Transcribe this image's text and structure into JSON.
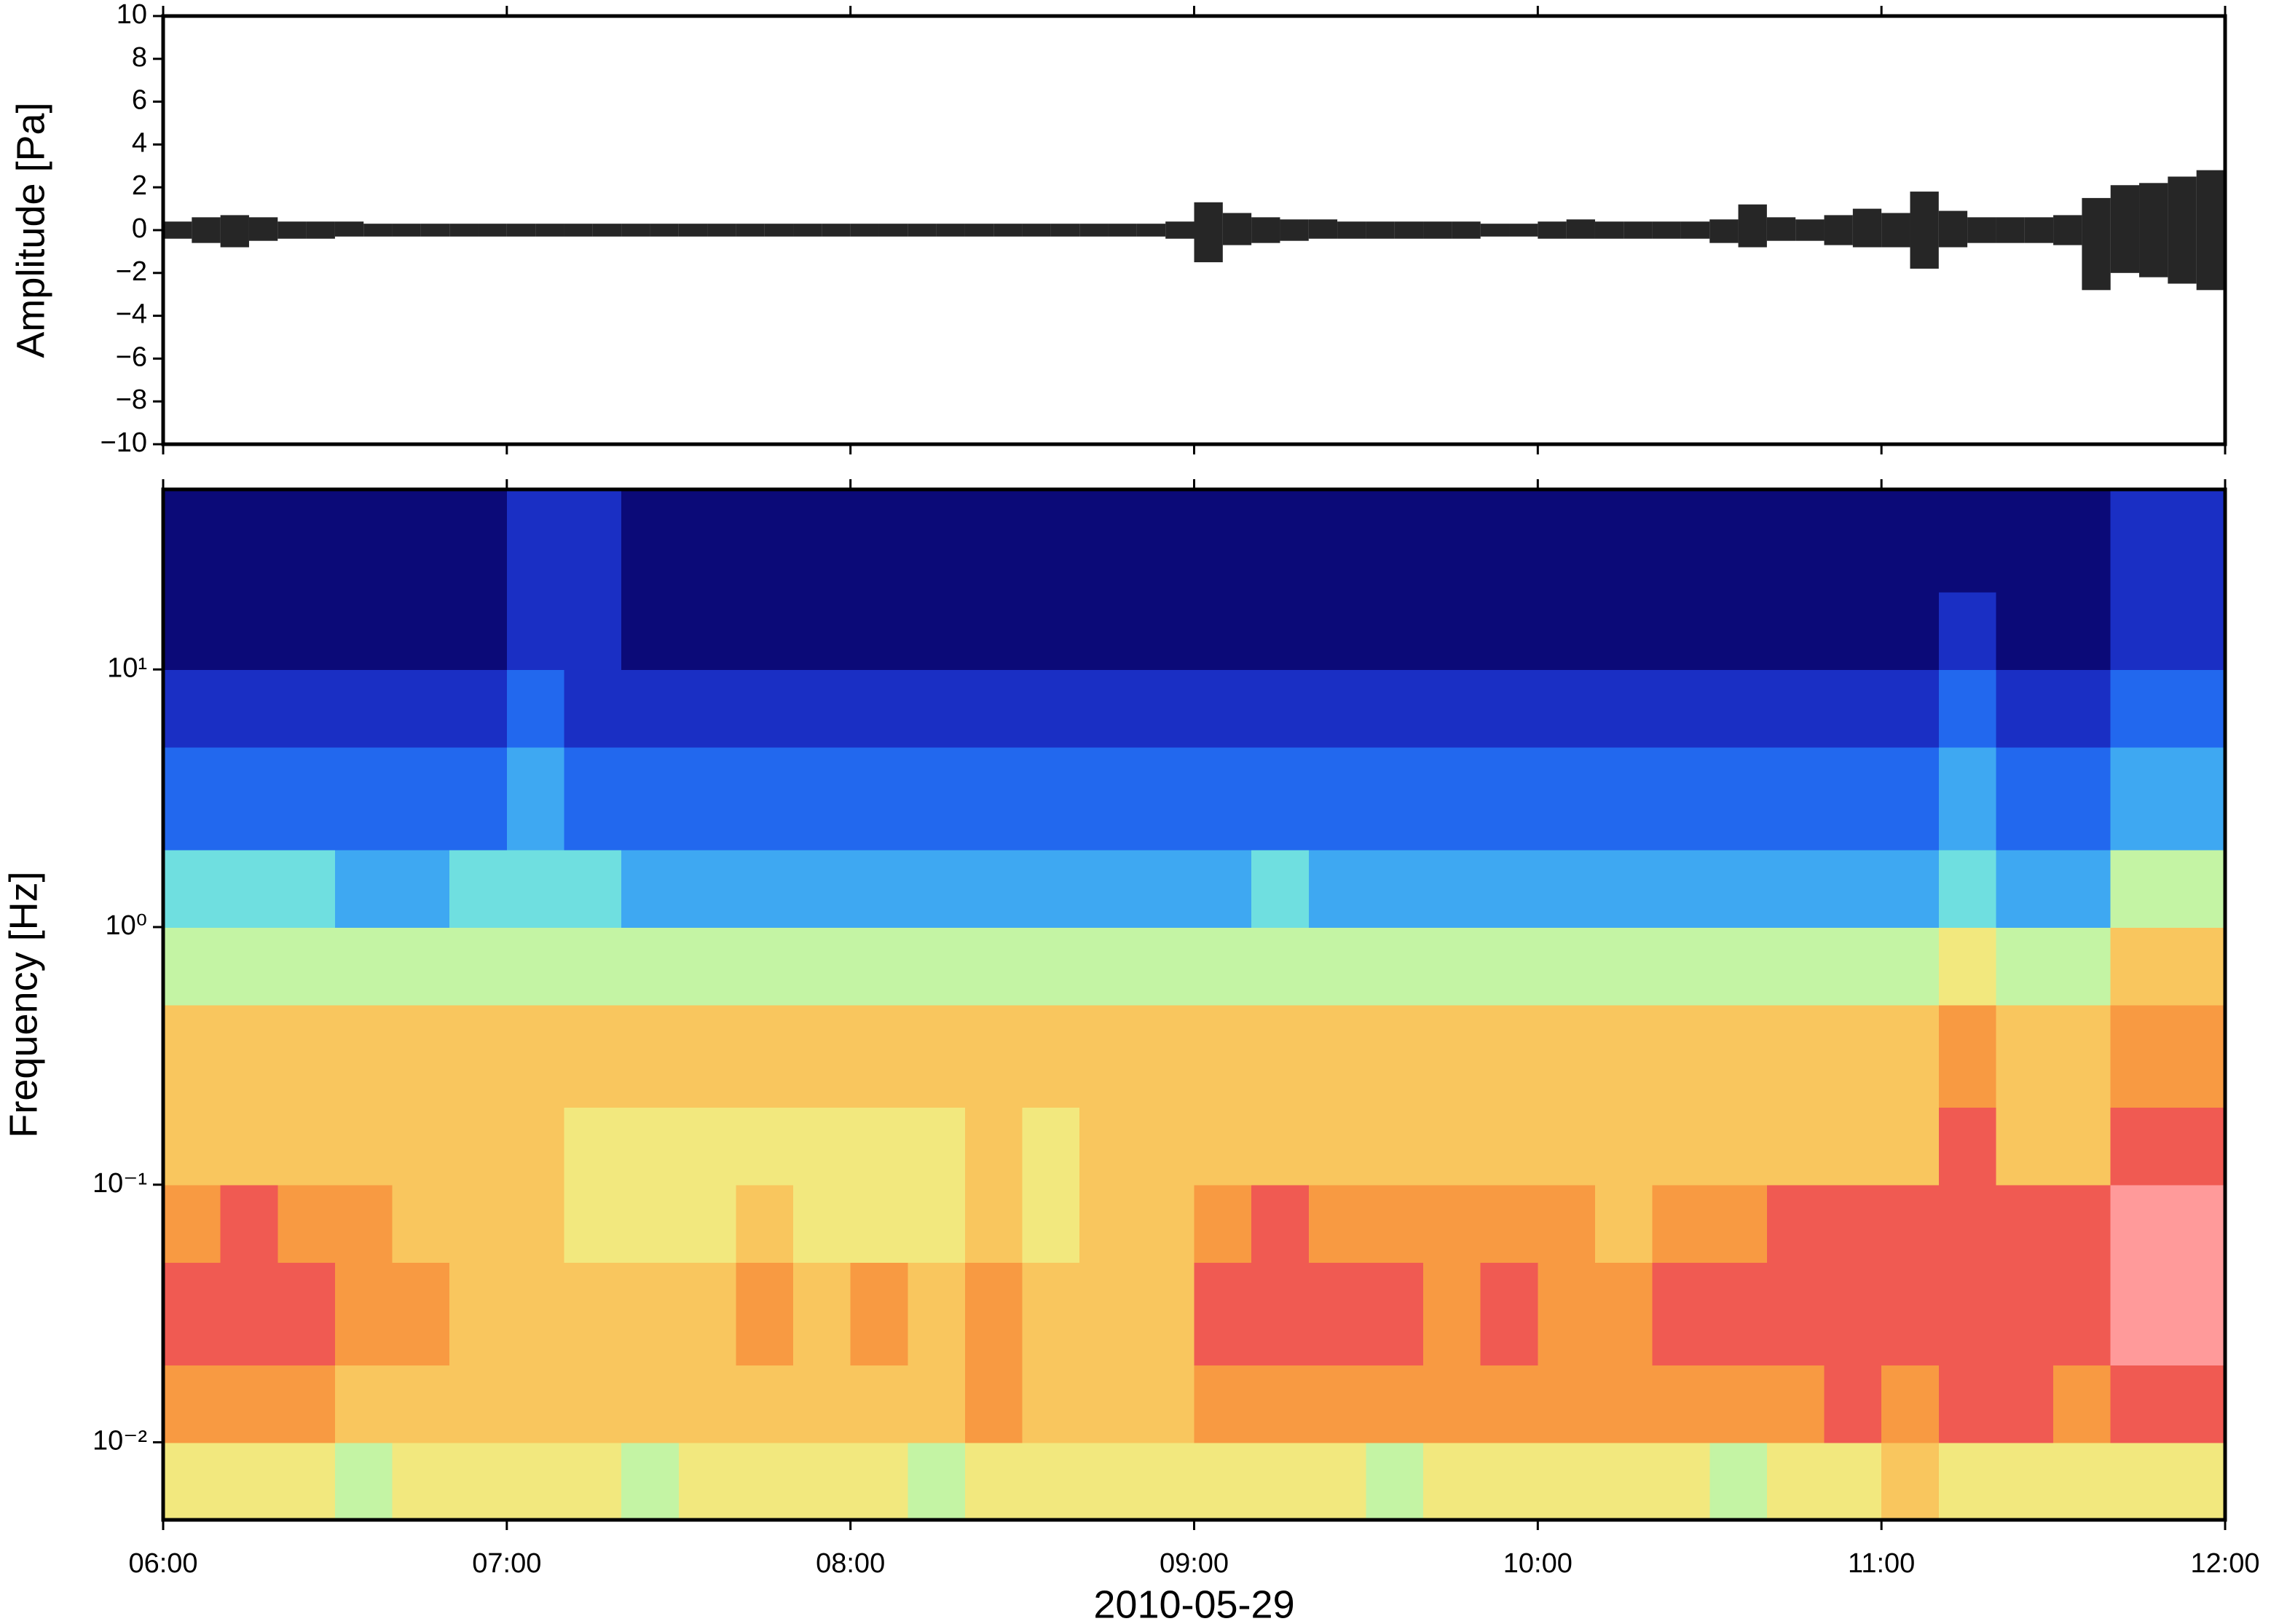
{
  "chart_data": [
    {
      "type": "waveform",
      "ylabel": "Amplitude [Pa]",
      "xlim": [
        "06:00",
        "12:00"
      ],
      "ylim": [
        -10,
        10
      ],
      "yticks": [
        {
          "value": -10,
          "label": "−10"
        },
        {
          "value": -8,
          "label": "−8"
        },
        {
          "value": -6,
          "label": "−6"
        },
        {
          "value": -4,
          "label": "−4"
        },
        {
          "value": -2,
          "label": "−2"
        },
        0,
        2,
        4,
        6,
        8,
        10
      ],
      "color": "#000000",
      "x": [
        "06:00",
        "06:05",
        "06:10",
        "06:15",
        "06:20",
        "06:25",
        "06:30",
        "06:35",
        "06:40",
        "06:45",
        "06:50",
        "06:55",
        "07:00",
        "07:05",
        "07:10",
        "07:15",
        "07:20",
        "07:25",
        "07:30",
        "07:35",
        "07:40",
        "07:45",
        "07:50",
        "07:55",
        "08:00",
        "08:05",
        "08:10",
        "08:15",
        "08:20",
        "08:25",
        "08:30",
        "08:35",
        "08:40",
        "08:45",
        "08:50",
        "08:55",
        "09:00",
        "09:05",
        "09:10",
        "09:15",
        "09:20",
        "09:25",
        "09:30",
        "09:35",
        "09:40",
        "09:45",
        "09:50",
        "09:55",
        "10:00",
        "10:05",
        "10:10",
        "10:15",
        "10:20",
        "10:25",
        "10:30",
        "10:35",
        "10:40",
        "10:45",
        "10:50",
        "10:55",
        "11:00",
        "11:05",
        "11:10",
        "11:15",
        "11:20",
        "11:25",
        "11:30",
        "11:35",
        "11:40",
        "11:45",
        "11:50",
        "11:55"
      ],
      "upper": [
        0.4,
        0.6,
        0.7,
        0.6,
        0.4,
        0.4,
        0.4,
        0.3,
        0.3,
        0.3,
        0.3,
        0.3,
        0.3,
        0.3,
        0.3,
        0.3,
        0.3,
        0.3,
        0.3,
        0.3,
        0.3,
        0.3,
        0.3,
        0.3,
        0.3,
        0.3,
        0.3,
        0.3,
        0.3,
        0.3,
        0.3,
        0.3,
        0.3,
        0.3,
        0.3,
        0.4,
        1.3,
        0.8,
        0.6,
        0.5,
        0.5,
        0.4,
        0.4,
        0.4,
        0.4,
        0.4,
        0.3,
        0.3,
        0.4,
        0.5,
        0.4,
        0.4,
        0.4,
        0.4,
        0.5,
        1.2,
        0.6,
        0.5,
        0.7,
        1.0,
        0.8,
        1.8,
        0.9,
        0.6,
        0.6,
        0.6,
        0.7,
        1.5,
        2.1,
        2.2,
        2.5,
        2.8
      ],
      "lower": [
        -0.4,
        -0.6,
        -0.8,
        -0.5,
        -0.4,
        -0.4,
        -0.3,
        -0.3,
        -0.3,
        -0.3,
        -0.3,
        -0.3,
        -0.3,
        -0.3,
        -0.3,
        -0.3,
        -0.3,
        -0.3,
        -0.3,
        -0.3,
        -0.3,
        -0.3,
        -0.3,
        -0.3,
        -0.3,
        -0.3,
        -0.3,
        -0.3,
        -0.3,
        -0.3,
        -0.3,
        -0.3,
        -0.3,
        -0.3,
        -0.3,
        -0.4,
        -1.5,
        -0.7,
        -0.6,
        -0.5,
        -0.4,
        -0.4,
        -0.4,
        -0.4,
        -0.4,
        -0.4,
        -0.3,
        -0.3,
        -0.4,
        -0.4,
        -0.4,
        -0.4,
        -0.4,
        -0.4,
        -0.6,
        -0.8,
        -0.5,
        -0.5,
        -0.7,
        -0.8,
        -0.8,
        -1.8,
        -0.8,
        -0.6,
        -0.6,
        -0.6,
        -0.7,
        -2.8,
        -2.0,
        -2.2,
        -2.5,
        -2.8
      ]
    },
    {
      "type": "heatmap",
      "ylabel": "Frequency [Hz]",
      "xlabel": "2010-05-29",
      "xlim": [
        "06:00",
        "12:00"
      ],
      "xticks": [
        "06:00",
        "07:00",
        "08:00",
        "09:00",
        "10:00",
        "11:00",
        "12:00"
      ],
      "ylim": [
        0.005,
        50
      ],
      "logy": true,
      "yticks": [
        {
          "value": 0.01,
          "label": "10⁻²"
        },
        {
          "value": 0.1,
          "label": "10⁻¹"
        },
        {
          "value": 1,
          "label": "10⁰"
        },
        {
          "value": 10,
          "label": "10¹"
        }
      ],
      "colormap": [
        "#0b0a78",
        "#1a2fc4",
        "#2268ee",
        "#3ea8f2",
        "#6fdfe0",
        "#c4f4a4",
        "#f2e87e",
        "#f9c65e",
        "#f89a42",
        "#f05a52",
        "#ff9a9a"
      ],
      "x": [
        "06:00",
        "06:10",
        "06:20",
        "06:30",
        "06:40",
        "06:50",
        "07:00",
        "07:10",
        "07:20",
        "07:30",
        "07:40",
        "07:50",
        "08:00",
        "08:10",
        "08:20",
        "08:30",
        "08:40",
        "08:50",
        "09:00",
        "09:10",
        "09:20",
        "09:30",
        "09:40",
        "09:50",
        "10:00",
        "10:10",
        "10:20",
        "10:30",
        "10:40",
        "10:50",
        "11:00",
        "11:10",
        "11:20",
        "11:30",
        "11:40",
        "11:50"
      ],
      "y": [
        0.005,
        0.01,
        0.02,
        0.05,
        0.1,
        0.2,
        0.5,
        1,
        2,
        5,
        10,
        20,
        50
      ],
      "z": [
        [
          6,
          6,
          6,
          5,
          6,
          6,
          6,
          6,
          5,
          6,
          6,
          6,
          6,
          5,
          6,
          6,
          6,
          6,
          6,
          6,
          6,
          5,
          6,
          6,
          6,
          6,
          6,
          5,
          6,
          6,
          7,
          6,
          6,
          6,
          6,
          6
        ],
        [
          8,
          8,
          8,
          7,
          7,
          7,
          7,
          7,
          7,
          7,
          7,
          7,
          7,
          7,
          8,
          7,
          7,
          7,
          8,
          8,
          8,
          8,
          8,
          8,
          8,
          8,
          8,
          8,
          8,
          9,
          8,
          9,
          9,
          8,
          9,
          9
        ],
        [
          9,
          9,
          9,
          8,
          8,
          7,
          7,
          7,
          7,
          7,
          8,
          7,
          8,
          7,
          8,
          7,
          7,
          7,
          9,
          9,
          9,
          9,
          8,
          9,
          8,
          8,
          9,
          9,
          9,
          9,
          9,
          9,
          9,
          9,
          10,
          10
        ],
        [
          8,
          9,
          8,
          8,
          7,
          7,
          7,
          6,
          6,
          6,
          7,
          6,
          6,
          6,
          7,
          6,
          7,
          7,
          8,
          9,
          8,
          8,
          8,
          8,
          8,
          7,
          8,
          8,
          9,
          9,
          9,
          9,
          9,
          9,
          10,
          10
        ],
        [
          7,
          7,
          7,
          7,
          7,
          7,
          7,
          6,
          6,
          6,
          6,
          6,
          6,
          6,
          7,
          6,
          7,
          7,
          7,
          7,
          7,
          7,
          7,
          7,
          7,
          7,
          7,
          7,
          7,
          7,
          7,
          9,
          7,
          7,
          9,
          9
        ],
        [
          7,
          7,
          7,
          7,
          7,
          7,
          7,
          7,
          7,
          7,
          7,
          7,
          7,
          7,
          7,
          7,
          7,
          7,
          7,
          7,
          7,
          7,
          7,
          7,
          7,
          7,
          7,
          7,
          7,
          7,
          7,
          8,
          7,
          7,
          8,
          8
        ],
        [
          5,
          5,
          5,
          5,
          5,
          5,
          5,
          5,
          5,
          5,
          5,
          5,
          5,
          5,
          5,
          5,
          5,
          5,
          5,
          5,
          5,
          5,
          5,
          5,
          5,
          5,
          5,
          5,
          5,
          5,
          5,
          6,
          5,
          5,
          7,
          7
        ],
        [
          4,
          4,
          4,
          3,
          3,
          4,
          4,
          4,
          3,
          3,
          3,
          3,
          3,
          3,
          3,
          3,
          3,
          3,
          3,
          4,
          3,
          3,
          3,
          3,
          3,
          3,
          3,
          3,
          3,
          3,
          3,
          4,
          3,
          3,
          5,
          5
        ],
        [
          2,
          2,
          2,
          2,
          2,
          2,
          3,
          2,
          2,
          2,
          2,
          2,
          2,
          2,
          2,
          2,
          2,
          2,
          2,
          2,
          2,
          2,
          2,
          2,
          2,
          2,
          2,
          2,
          2,
          2,
          2,
          3,
          2,
          2,
          3,
          3
        ],
        [
          1,
          1,
          1,
          1,
          1,
          1,
          2,
          1,
          1,
          1,
          1,
          1,
          1,
          1,
          1,
          1,
          1,
          1,
          1,
          1,
          1,
          1,
          1,
          1,
          1,
          1,
          1,
          1,
          1,
          1,
          1,
          2,
          1,
          1,
          2,
          2
        ],
        [
          0,
          0,
          0,
          0,
          0,
          0,
          1,
          1,
          0,
          0,
          0,
          0,
          0,
          0,
          0,
          0,
          0,
          0,
          0,
          0,
          0,
          0,
          0,
          0,
          0,
          0,
          0,
          0,
          0,
          0,
          0,
          1,
          0,
          0,
          1,
          1
        ],
        [
          0,
          0,
          0,
          0,
          0,
          0,
          1,
          1,
          0,
          0,
          0,
          0,
          0,
          0,
          0,
          0,
          0,
          0,
          0,
          0,
          0,
          0,
          0,
          0,
          0,
          0,
          0,
          0,
          0,
          0,
          0,
          0,
          0,
          0,
          1,
          1
        ]
      ]
    }
  ]
}
